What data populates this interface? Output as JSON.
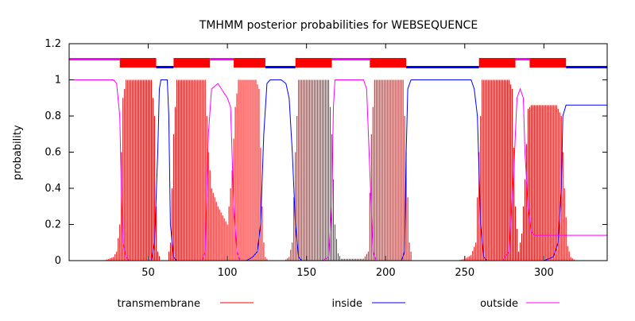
{
  "chart_data": {
    "type": "line",
    "title": "TMHMM posterior probabilities for WEBSEQUENCE",
    "xlabel": "",
    "ylabel": "probability",
    "xlim": [
      0,
      340
    ],
    "ylim": [
      0,
      1.2
    ],
    "x_ticks": [
      "50",
      "100",
      "150",
      "200",
      "250",
      "300"
    ],
    "y_ticks": [
      "0",
      "0.2",
      "0.4",
      "0.6",
      "0.8",
      "1",
      "1.2"
    ],
    "grid": false,
    "legend_position": "bottom",
    "topology": [
      {
        "type": "outside",
        "start": 1,
        "end": 32
      },
      {
        "type": "transmembrane",
        "start": 33,
        "end": 55
      },
      {
        "type": "inside",
        "start": 56,
        "end": 66
      },
      {
        "type": "transmembrane",
        "start": 67,
        "end": 89
      },
      {
        "type": "outside",
        "start": 90,
        "end": 104
      },
      {
        "type": "transmembrane",
        "start": 105,
        "end": 124
      },
      {
        "type": "inside",
        "start": 125,
        "end": 143
      },
      {
        "type": "transmembrane",
        "start": 144,
        "end": 166
      },
      {
        "type": "outside",
        "start": 167,
        "end": 190
      },
      {
        "type": "transmembrane",
        "start": 191,
        "end": 213
      },
      {
        "type": "inside",
        "start": 214,
        "end": 259
      },
      {
        "type": "transmembrane",
        "start": 260,
        "end": 282
      },
      {
        "type": "outside",
        "start": 283,
        "end": 291
      },
      {
        "type": "transmembrane",
        "start": 292,
        "end": 314
      },
      {
        "type": "inside",
        "start": 315,
        "end": 340
      }
    ],
    "series": [
      {
        "name": "transmembrane",
        "color": "#ff0000",
        "style": "impulses",
        "points": [
          [
            0,
            0
          ],
          [
            22,
            0
          ],
          [
            25,
            0.01
          ],
          [
            28,
            0.02
          ],
          [
            30,
            0.05
          ],
          [
            32,
            0.2
          ],
          [
            33,
            0.6
          ],
          [
            34,
            0.9
          ],
          [
            36,
            1.0
          ],
          [
            52,
            1.0
          ],
          [
            54,
            0.8
          ],
          [
            55,
            0.3
          ],
          [
            56,
            0.05
          ],
          [
            58,
            0
          ],
          [
            62,
            0
          ],
          [
            64,
            0.1
          ],
          [
            66,
            0.7
          ],
          [
            68,
            1.0
          ],
          [
            86,
            1.0
          ],
          [
            88,
            0.6
          ],
          [
            90,
            0.4
          ],
          [
            94,
            0.3
          ],
          [
            100,
            0.2
          ],
          [
            103,
            0.5
          ],
          [
            105,
            0.85
          ],
          [
            107,
            1.0
          ],
          [
            118,
            1.0
          ],
          [
            120,
            0.95
          ],
          [
            122,
            0.3
          ],
          [
            123,
            0.1
          ],
          [
            124,
            0.02
          ],
          [
            126,
            0
          ],
          [
            136,
            0
          ],
          [
            139,
            0.02
          ],
          [
            141,
            0.1
          ],
          [
            143,
            0.6
          ],
          [
            145,
            1.0
          ],
          [
            164,
            1.0
          ],
          [
            166,
            0.7
          ],
          [
            168,
            0.2
          ],
          [
            170,
            0.04
          ],
          [
            172,
            0.01
          ],
          [
            186,
            0.01
          ],
          [
            189,
            0.05
          ],
          [
            191,
            0.7
          ],
          [
            193,
            1.0
          ],
          [
            211,
            1.0
          ],
          [
            213,
            0.6
          ],
          [
            215,
            0.1
          ],
          [
            217,
            0
          ],
          [
            245,
            0
          ],
          [
            250,
            0.01
          ],
          [
            254,
            0.03
          ],
          [
            257,
            0.1
          ],
          [
            259,
            0.6
          ],
          [
            261,
            1.0
          ],
          [
            278,
            1.0
          ],
          [
            280,
            0.95
          ],
          [
            282,
            0.3
          ],
          [
            284,
            0.05
          ],
          [
            286,
            0.15
          ],
          [
            288,
            0.45
          ],
          [
            290,
            0.84
          ],
          [
            292,
            0.86
          ],
          [
            308,
            0.86
          ],
          [
            311,
            0.8
          ],
          [
            313,
            0.4
          ],
          [
            315,
            0.08
          ],
          [
            317,
            0.02
          ],
          [
            320,
            0
          ],
          [
            340,
            0
          ]
        ]
      },
      {
        "name": "inside",
        "color": "#0000ff",
        "style": "line",
        "points": [
          [
            0,
            0
          ],
          [
            52,
            0
          ],
          [
            54,
            0.1
          ],
          [
            56,
            0.6
          ],
          [
            57,
            0.95
          ],
          [
            58,
            1.0
          ],
          [
            62,
            1.0
          ],
          [
            63,
            0.8
          ],
          [
            64,
            0.2
          ],
          [
            66,
            0.02
          ],
          [
            68,
            0
          ],
          [
            112,
            0
          ],
          [
            116,
            0.02
          ],
          [
            119,
            0.05
          ],
          [
            121,
            0.2
          ],
          [
            123,
            0.7
          ],
          [
            125,
            0.98
          ],
          [
            127,
            1.0
          ],
          [
            134,
            1.0
          ],
          [
            137,
            0.98
          ],
          [
            139,
            0.9
          ],
          [
            141,
            0.6
          ],
          [
            143,
            0.2
          ],
          [
            145,
            0.02
          ],
          [
            147,
            0
          ],
          [
            210,
            0
          ],
          [
            212,
            0.05
          ],
          [
            213,
            0.6
          ],
          [
            214,
            0.95
          ],
          [
            216,
            1.0
          ],
          [
            254,
            1.0
          ],
          [
            256,
            0.95
          ],
          [
            258,
            0.8
          ],
          [
            260,
            0.2
          ],
          [
            262,
            0.02
          ],
          [
            264,
            0
          ],
          [
            290,
            0
          ],
          [
            300,
            0
          ],
          [
            306,
            0.02
          ],
          [
            309,
            0.1
          ],
          [
            311,
            0.4
          ],
          [
            312,
            0.8
          ],
          [
            314,
            0.86
          ],
          [
            340,
            0.86
          ]
        ]
      },
      {
        "name": "outside",
        "color": "#ff00ff",
        "style": "line",
        "points": [
          [
            0,
            1.0
          ],
          [
            28,
            1.0
          ],
          [
            30,
            0.98
          ],
          [
            32,
            0.8
          ],
          [
            33,
            0.4
          ],
          [
            34,
            0.1
          ],
          [
            36,
            0.02
          ],
          [
            38,
            0
          ],
          [
            84,
            0
          ],
          [
            86,
            0.05
          ],
          [
            88,
            0.7
          ],
          [
            90,
            0.95
          ],
          [
            94,
            0.98
          ],
          [
            100,
            0.9
          ],
          [
            102,
            0.85
          ],
          [
            104,
            0.3
          ],
          [
            106,
            0.05
          ],
          [
            108,
            0
          ],
          [
            160,
            0
          ],
          [
            164,
            0.02
          ],
          [
            166,
            0.3
          ],
          [
            167,
            0.85
          ],
          [
            168,
            1.0
          ],
          [
            186,
            1.0
          ],
          [
            188,
            0.95
          ],
          [
            190,
            0.5
          ],
          [
            192,
            0.05
          ],
          [
            194,
            0
          ],
          [
            274,
            0
          ],
          [
            278,
            0.05
          ],
          [
            281,
            0.5
          ],
          [
            283,
            0.9
          ],
          [
            285,
            0.95
          ],
          [
            287,
            0.9
          ],
          [
            288,
            0.6
          ],
          [
            290,
            0.3
          ],
          [
            292,
            0.16
          ],
          [
            294,
            0.14
          ],
          [
            340,
            0.14
          ]
        ]
      }
    ]
  }
}
